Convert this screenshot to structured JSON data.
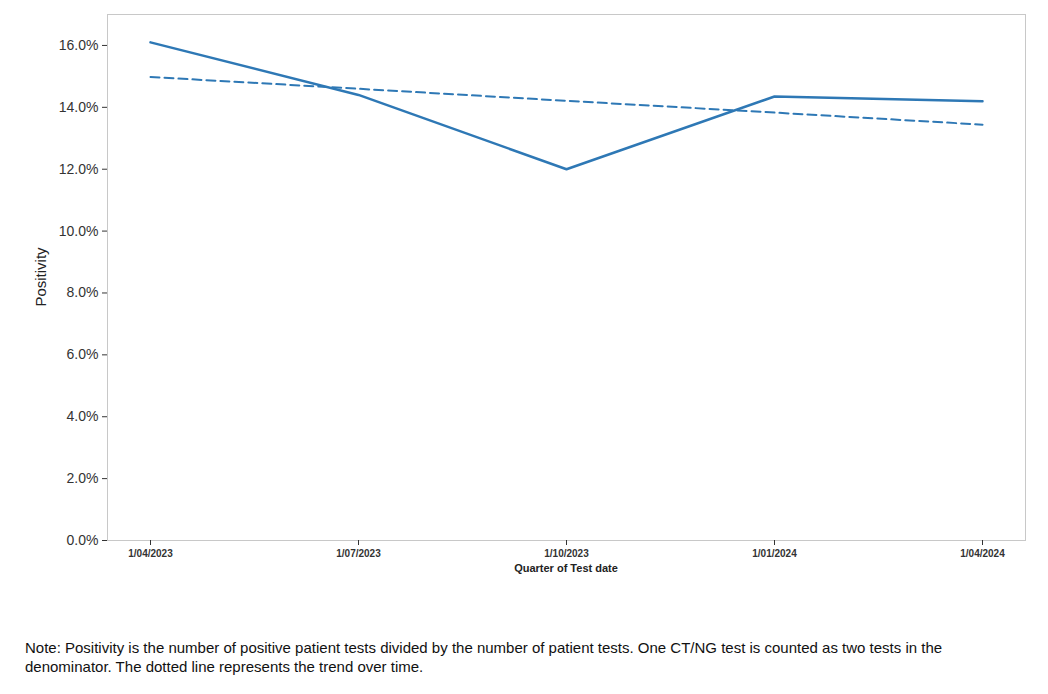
{
  "chart_data": {
    "type": "line",
    "x": [
      "1/04/2023",
      "1/07/2023",
      "1/10/2023",
      "1/01/2024",
      "1/04/2024"
    ],
    "x_label": "Quarter of Test date",
    "y_label": "Positivity",
    "series": [
      {
        "color": "#2e78b5",
        "line_style": "solid",
        "values": [
          16.1,
          14.4,
          12.0,
          14.35,
          14.2
        ]
      },
      {
        "color": "#2e78b5",
        "line_style": "dashed",
        "values": [
          14.98,
          14.6,
          14.21,
          13.83,
          13.44
        ]
      }
    ],
    "ylim": [
      0,
      17
    ],
    "yticks": [
      {
        "value": 0,
        "label": "0.0%"
      },
      {
        "value": 2,
        "label": "2.0%"
      },
      {
        "value": 4,
        "label": "4.0%"
      },
      {
        "value": 6,
        "label": "6.0%"
      },
      {
        "value": 8,
        "label": "8.0%"
      },
      {
        "value": 10,
        "label": "10.0%"
      },
      {
        "value": 12,
        "label": "12.0%"
      },
      {
        "value": 14,
        "label": "14.0%"
      },
      {
        "value": 16,
        "label": "16.0%"
      }
    ],
    "grid": false,
    "note": "Note: Positivity is the number of positive patient tests divided by the number of patient tests. One CT/NG test is counted as two tests in the denominator. The dotted line represents the trend over time."
  }
}
